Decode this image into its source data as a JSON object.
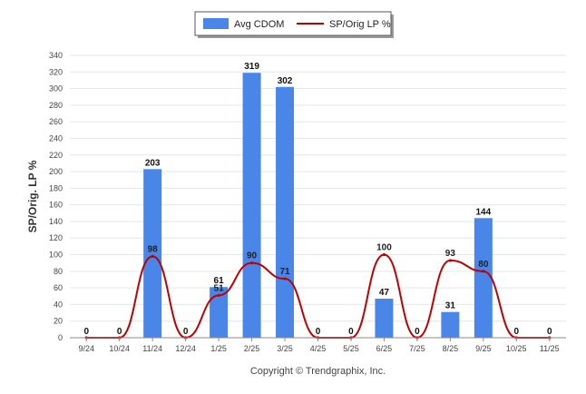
{
  "chart_data": {
    "type": "bar",
    "title": "",
    "xlabel": "",
    "ylabel": "SP/Orig. LP %",
    "ylim": [
      0,
      340
    ],
    "y_ticks": [
      0,
      20,
      40,
      60,
      80,
      100,
      120,
      140,
      160,
      180,
      200,
      220,
      240,
      260,
      280,
      300,
      320,
      340
    ],
    "grid": true,
    "legend_position": "top-center",
    "categories": [
      "9/24",
      "10/24",
      "11/24",
      "12/24",
      "1/25",
      "2/25",
      "3/25",
      "4/25",
      "5/25",
      "6/25",
      "7/25",
      "8/25",
      "9/25",
      "10/25",
      "11/25"
    ],
    "series": [
      {
        "name": "Avg CDOM",
        "kind": "bar",
        "color": "#4a86e8",
        "values": [
          0,
          0,
          203,
          0,
          61,
          319,
          302,
          0,
          0,
          47,
          0,
          31,
          144,
          0,
          0
        ],
        "labels": [
          "0",
          "0",
          "203",
          "0",
          "61",
          "319",
          "302",
          "0",
          "0",
          "47",
          "0",
          "31",
          "144",
          "0",
          "0"
        ]
      },
      {
        "name": "SP/Orig LP %",
        "kind": "line",
        "color": "#c00000",
        "values": [
          0,
          0,
          98,
          0,
          51,
          90,
          71,
          0,
          0,
          100,
          0,
          93,
          80,
          0,
          0
        ],
        "labels": [
          "",
          "",
          "98",
          "",
          "51",
          "90",
          "71",
          "",
          "",
          "100",
          "",
          "93",
          "80",
          "",
          ""
        ]
      }
    ],
    "credit": "Copyright © Trendgraphix, Inc."
  }
}
